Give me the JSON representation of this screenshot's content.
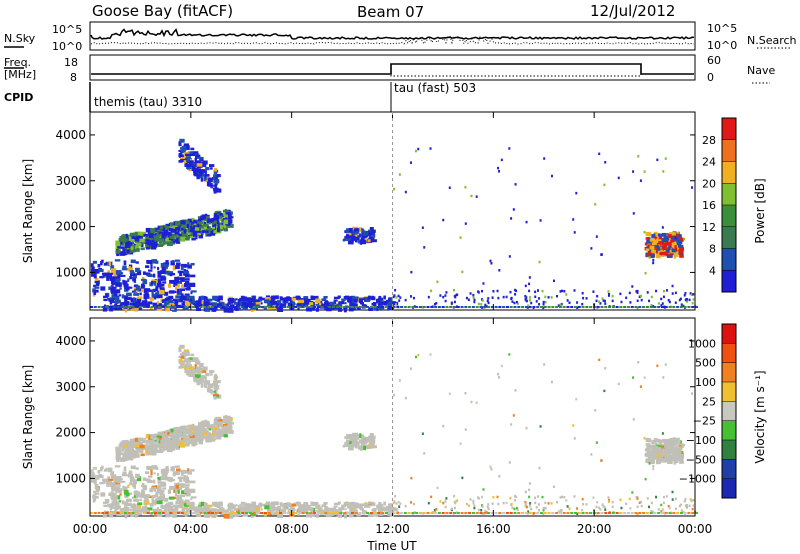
{
  "header": {
    "station": "Goose Bay (fitACF)",
    "beam": "Beam 07",
    "date": "12/Jul/2012"
  },
  "top_panels": {
    "nsky_label": "N.Sky",
    "nsky_ticks": [
      "10^5",
      "10^0"
    ],
    "nsearch_label": "N.Search",
    "nsearch_ticks": [
      "10^5",
      "10^0"
    ],
    "freq_label": "Freq.",
    "freq_unit": "[MHz]",
    "freq_ticks": [
      "18",
      "8"
    ],
    "nave_label": "Nave",
    "nave_ticks": [
      "60",
      "0"
    ],
    "cpid_label": "CPID",
    "cpid_modes": [
      "themis (tau) 3310",
      "tau (fast) 503"
    ]
  },
  "colors": {
    "power": [
      "#1f1fd6",
      "#1f4fb0",
      "#3a7a50",
      "#3b8f3b",
      "#7fc030",
      "#f0b020",
      "#f07020",
      "#e01818"
    ],
    "velocity": [
      "#1a28b4",
      "#2040a8",
      "#308040",
      "#44c030",
      "#c8c8c0",
      "#f0c030",
      "#f08020",
      "#f05010",
      "#e01010"
    ],
    "gray_scatter": "#c0c0b8"
  },
  "chart_data": [
    {
      "type": "heatmap",
      "name": "power",
      "ylabel": "Slant Range [km]",
      "xlabel": "",
      "x_ticks": [
        "00:00",
        "04:00",
        "08:00",
        "12:00",
        "16:00",
        "20:00",
        "00:00"
      ],
      "xlim_hours": [
        0,
        24
      ],
      "ylim": [
        180,
        4500
      ],
      "y_ticks": [
        1000,
        2000,
        3000,
        4000
      ],
      "colorbar_label": "Power [dB]",
      "colorbar_ticks": [
        "28",
        "24",
        "20",
        "16",
        "12",
        "8",
        "4"
      ],
      "features": [
        {
          "desc": "arc",
          "t": [
            1.0,
            5.5
          ],
          "r": [
            1400,
            2200
          ]
        },
        {
          "desc": "patch",
          "t": [
            0.0,
            4.0
          ],
          "r": [
            500,
            1300
          ]
        },
        {
          "desc": "plume",
          "t": [
            3.5,
            5.0
          ],
          "r": [
            2600,
            3700
          ]
        },
        {
          "desc": "band",
          "t": [
            10.0,
            11.2
          ],
          "r": [
            1700,
            2000
          ]
        },
        {
          "desc": "near-range",
          "t": [
            0.5,
            12.0
          ],
          "r": [
            200,
            500
          ]
        },
        {
          "desc": "late-cluster",
          "t": [
            22.0,
            23.4
          ],
          "r": [
            1400,
            1900
          ]
        }
      ]
    },
    {
      "type": "heatmap",
      "name": "velocity",
      "ylabel": "Slant Range [km]",
      "xlabel": "Time UT",
      "x_ticks": [
        "00:00",
        "04:00",
        "08:00",
        "12:00",
        "16:00",
        "20:00",
        "00:00"
      ],
      "xlim_hours": [
        0,
        24
      ],
      "ylim": [
        180,
        4500
      ],
      "y_ticks": [
        1000,
        2000,
        3000,
        4000
      ],
      "colorbar_label": "Velocity [m s⁻¹]",
      "colorbar_ticks": [
        "1000",
        "500",
        "100",
        "25",
        "−25",
        "−100",
        "−500",
        "−1000"
      ]
    }
  ]
}
